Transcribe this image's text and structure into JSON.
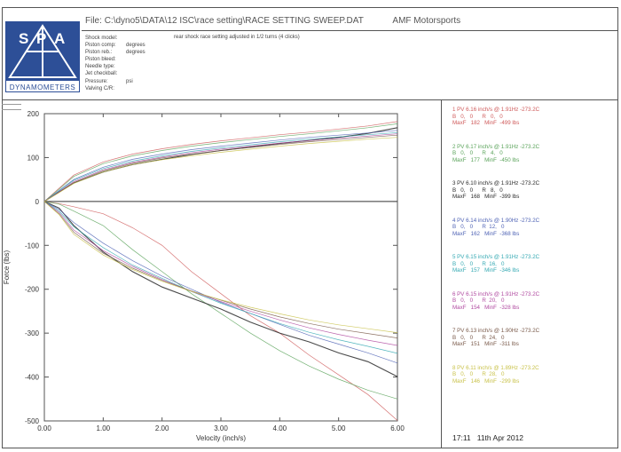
{
  "logo": {
    "letters": [
      "S",
      "P",
      "A"
    ],
    "caption": "DYNAMOMETERS"
  },
  "header": {
    "file_label": "File:",
    "file_path": "C:\\dyno5\\DATA\\12 ISC\\race setting\\RACE SETTING SWEEP.DAT",
    "company": "AMF Motorsports",
    "note": "rear shock race setting adjusted in 1/2 turns (4 clicks)",
    "fields": [
      {
        "label": "Shock model:",
        "value": ""
      },
      {
        "label": "Piston comp:",
        "value": "degrees"
      },
      {
        "label": "Piston reb.:",
        "value": "degrees"
      },
      {
        "label": "Piston bleed:",
        "value": ""
      },
      {
        "label": "Needle type:",
        "value": ""
      },
      {
        "label": "Jet checkball:",
        "value": ""
      },
      {
        "label": "Pressure:",
        "value": "psi"
      },
      {
        "label": "Valving C/R:",
        "value": ""
      }
    ]
  },
  "chart_data": {
    "type": "line",
    "xlabel": "Velocity (inch/s)",
    "ylabel": "Force (lbs)",
    "xlim": [
      0,
      6
    ],
    "ylim": [
      -500,
      200
    ],
    "xticks": [
      "0.00",
      "1.00",
      "2.00",
      "3.00",
      "4.00",
      "5.00",
      "6.00"
    ],
    "yticks": [
      "200",
      "100",
      "0",
      "-100",
      "-200",
      "-300",
      "-400",
      "-500"
    ],
    "grid": false,
    "x": [
      0,
      0.25,
      0.5,
      1,
      1.5,
      2,
      2.5,
      3,
      3.5,
      4,
      4.5,
      5,
      5.5,
      6
    ],
    "series": [
      {
        "color": "#cf5a5a",
        "values": [
          0,
          30,
          60,
          90,
          108,
          120,
          130,
          138,
          145,
          152,
          158,
          165,
          172,
          182
        ],
        "rebound": [
          0,
          -5,
          -12,
          -28,
          -60,
          -100,
          -160,
          -210,
          -260,
          -300,
          -350,
          -395,
          -440,
          -499
        ]
      },
      {
        "color": "#5aa35a",
        "values": [
          0,
          28,
          57,
          86,
          104,
          116,
          126,
          134,
          141,
          148,
          154,
          161,
          168,
          177
        ],
        "rebound": [
          0,
          -6,
          -22,
          -55,
          -110,
          -160,
          -210,
          -255,
          -300,
          -340,
          -375,
          -405,
          -430,
          -450
        ]
      },
      {
        "color": "#2a2a2a",
        "values": [
          0,
          22,
          42,
          67,
          84,
          96,
          107,
          116,
          124,
          132,
          139,
          146,
          155,
          168
        ],
        "rebound": [
          0,
          -15,
          -55,
          -115,
          -160,
          -195,
          -220,
          -245,
          -275,
          -300,
          -320,
          -345,
          -365,
          -399
        ]
      },
      {
        "color": "#4f63b5",
        "values": [
          0,
          25,
          50,
          78,
          96,
          108,
          118,
          126,
          133,
          140,
          146,
          151,
          156,
          162
        ],
        "rebound": [
          0,
          -18,
          -48,
          -95,
          -135,
          -170,
          -200,
          -230,
          -255,
          -280,
          -305,
          -325,
          -345,
          -368
        ]
      },
      {
        "color": "#35a9b3",
        "values": [
          0,
          24,
          48,
          75,
          92,
          104,
          114,
          122,
          129,
          136,
          142,
          147,
          152,
          157
        ],
        "rebound": [
          0,
          -22,
          -58,
          -105,
          -145,
          -175,
          -205,
          -232,
          -255,
          -278,
          -298,
          -315,
          -330,
          -346
        ]
      },
      {
        "color": "#b04aa0",
        "values": [
          0,
          22,
          45,
          72,
          89,
          101,
          111,
          119,
          126,
          133,
          139,
          144,
          149,
          154
        ],
        "rebound": [
          0,
          -25,
          -65,
          -112,
          -148,
          -178,
          -205,
          -228,
          -250,
          -270,
          -288,
          -303,
          -316,
          -328
        ]
      },
      {
        "color": "#7a5a4a",
        "values": [
          0,
          21,
          43,
          70,
          87,
          99,
          108,
          116,
          123,
          130,
          136,
          141,
          146,
          151
        ],
        "rebound": [
          0,
          -28,
          -70,
          -118,
          -152,
          -180,
          -204,
          -225,
          -245,
          -263,
          -278,
          -291,
          -301,
          -311
        ]
      },
      {
        "color": "#c9c24a",
        "values": [
          0,
          20,
          41,
          67,
          84,
          95,
          104,
          112,
          119,
          126,
          132,
          137,
          142,
          146
        ],
        "rebound": [
          0,
          -30,
          -75,
          -122,
          -155,
          -182,
          -205,
          -224,
          -241,
          -256,
          -270,
          -281,
          -290,
          -299
        ]
      }
    ]
  },
  "legend": [
    {
      "line1": "1 PV 6.16 inch/s @ 1.91Hz -273.2C",
      "line2": "B   0,   0      R   0,   0",
      "line3": "MaxF   182   MinF  -499 lbs",
      "color": "#cf5a5a"
    },
    {
      "line1": "2 PV 6.17 inch/s @ 1.91Hz -273.2C",
      "line2": "B   0,   0      R   4,   0",
      "line3": "MaxF   177   MinF  -450 lbs",
      "color": "#5aa35a"
    },
    {
      "line1": "3 PV 6.10 inch/s @ 1.91Hz -273.2C",
      "line2": "B   0,   0      R   8,   0",
      "line3": "MaxF   168   MinF  -399 lbs",
      "color": "#2a2a2a"
    },
    {
      "line1": "4 PV 6.14 inch/s @ 1.90Hz -273.2C",
      "line2": "B   0,   0      R  12,   0",
      "line3": "MaxF   162   MinF  -368 lbs",
      "color": "#4f63b5"
    },
    {
      "line1": "5 PV 6.15 inch/s @ 1.91Hz -273.2C",
      "line2": "B   0,   0      R  16,   0",
      "line3": "MaxF   157   MinF  -346 lbs",
      "color": "#35a9b3"
    },
    {
      "line1": "6 PV 6.15 inch/s @ 1.91Hz -273.2C",
      "line2": "B   0,   0      R  20,   0",
      "line3": "MaxF   154   MinF  -328 lbs",
      "color": "#b04aa0"
    },
    {
      "line1": "7 PV 6.13 inch/s @ 1.90Hz -273.2C",
      "line2": "B   0,   0      R  24,   0",
      "line3": "MaxF   151   MinF  -311 lbs",
      "color": "#7a5a4a"
    },
    {
      "line1": "8 PV 6.11 inch/s @ 1.89Hz -273.2C",
      "line2": "B   0,   0      R  28,   0",
      "line3": "MaxF   146   MinF  -299 lbs",
      "color": "#c9c24a"
    }
  ],
  "footer": {
    "time": "17:11",
    "date": "11th Apr 2012"
  },
  "colors": {
    "logo_blue": "#2d4f97",
    "frame": "#555555"
  }
}
